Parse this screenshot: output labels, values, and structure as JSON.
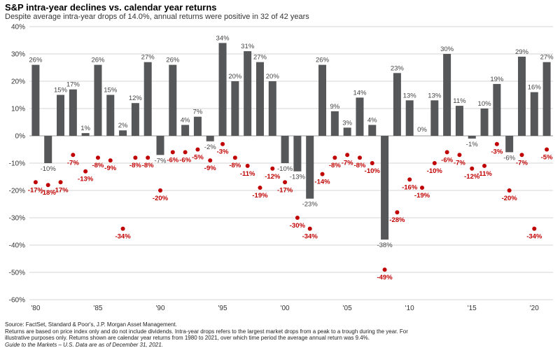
{
  "header": {
    "title": "S&P intra-year declines vs. calendar year returns",
    "subtitle": "Despite average intra-year drops of 14.0%, annual returns were positive in 32 of 42 years"
  },
  "chart_data": {
    "type": "bar",
    "title": "S&P intra-year declines vs. calendar year returns",
    "ylim": [
      -60,
      40
    ],
    "y_ticks": [
      "40%",
      "30%",
      "20%",
      "10%",
      "0%",
      "-10%",
      "-20%",
      "-30%",
      "-40%",
      "-50%",
      "-60%"
    ],
    "y_tick_values": [
      40,
      30,
      20,
      10,
      0,
      -10,
      -20,
      -30,
      -40,
      -50,
      -60
    ],
    "x_ticks": [
      "'80",
      "'85",
      "'90",
      "'95",
      "'00",
      "'05",
      "'10",
      "'15",
      "'20"
    ],
    "x_tick_years": [
      1980,
      1985,
      1990,
      1995,
      2000,
      2005,
      2010,
      2015,
      2020
    ],
    "grid": "horizontal",
    "categories": [
      1980,
      1981,
      1982,
      1983,
      1984,
      1985,
      1986,
      1987,
      1988,
      1989,
      1990,
      1991,
      1992,
      1993,
      1994,
      1995,
      1996,
      1997,
      1998,
      1999,
      2000,
      2001,
      2002,
      2003,
      2004,
      2005,
      2006,
      2007,
      2008,
      2009,
      2010,
      2011,
      2012,
      2013,
      2014,
      2015,
      2016,
      2017,
      2018,
      2019,
      2020,
      2021
    ],
    "series": [
      {
        "kind": "bar",
        "color": "#555759",
        "values": [
          26,
          -10,
          15,
          17,
          1,
          26,
          15,
          2,
          12,
          27,
          -7,
          26,
          4,
          7,
          -2,
          34,
          20,
          31,
          27,
          20,
          -10,
          -13,
          -23,
          26,
          9,
          3,
          14,
          4,
          -38,
          23,
          13,
          0,
          13,
          30,
          11,
          -1,
          10,
          19,
          -6,
          29,
          16,
          27
        ],
        "labels": [
          "26%",
          "-10%",
          "15%",
          "17%",
          "1%",
          "26%",
          "15%",
          "2%",
          "12%",
          "27%",
          "-7%",
          "26%",
          "4%",
          "7%",
          "-2%",
          "34%",
          "20%",
          "31%",
          "27%",
          "20%",
          "-10%",
          "-13%",
          "-23%",
          "26%",
          "9%",
          "3%",
          "14%",
          "4%",
          "-38%",
          "23%",
          "13%",
          "0%",
          "13%",
          "30%",
          "11%",
          "-1%",
          "10%",
          "19%",
          "-6%",
          "29%",
          "16%",
          "27%"
        ]
      },
      {
        "kind": "dot",
        "color": "#c00000",
        "values": [
          -17,
          -18,
          -17,
          -7,
          -13,
          -8,
          -9,
          -34,
          -8,
          -8,
          -20,
          -6,
          -6,
          -5,
          -9,
          -3,
          -8,
          -11,
          -19,
          -12,
          -17,
          -30,
          -34,
          -14,
          -8,
          -7,
          -8,
          -10,
          -49,
          -28,
          -16,
          -19,
          -10,
          -6,
          -7,
          -12,
          -11,
          -3,
          -20,
          -7,
          -34,
          -5
        ],
        "labels": [
          "-17%",
          "-18%",
          "-17%",
          "-7%",
          "-13%",
          "-8%",
          "-9%",
          "-34%",
          "-8%",
          "-8%",
          "-20%",
          "-6%",
          "-6%",
          "-5%",
          "-9%",
          "-3%",
          "-8%",
          "-11%",
          "-19%",
          "-12%",
          "-17%",
          "-30%",
          "-34%",
          "-14%",
          "-8%",
          "-7%",
          "-8%",
          "-10%",
          "-49%",
          "-28%",
          "-16%",
          "-19%",
          "-10%",
          "-6%",
          "-7%",
          "-12%",
          "-11%",
          "-3%",
          "-20%",
          "-7%",
          "-34%",
          "-5%"
        ]
      }
    ]
  },
  "footnotes": {
    "line1": "Source: FactSet, Standard & Poor's, J.P. Morgan Asset Management.",
    "line2": "Returns are based on price index only and do not include dividends. Intra-year drops refers to the largest market drops from a peak to a trough during the year. For",
    "line3": "illustrative purposes only. Returns shown are calendar year returns from 1980 to 2021, over which time period the average annual return was 9.4%.",
    "line4": "Guide to the Markets – U.S. Data are as of December 31, 2021."
  }
}
